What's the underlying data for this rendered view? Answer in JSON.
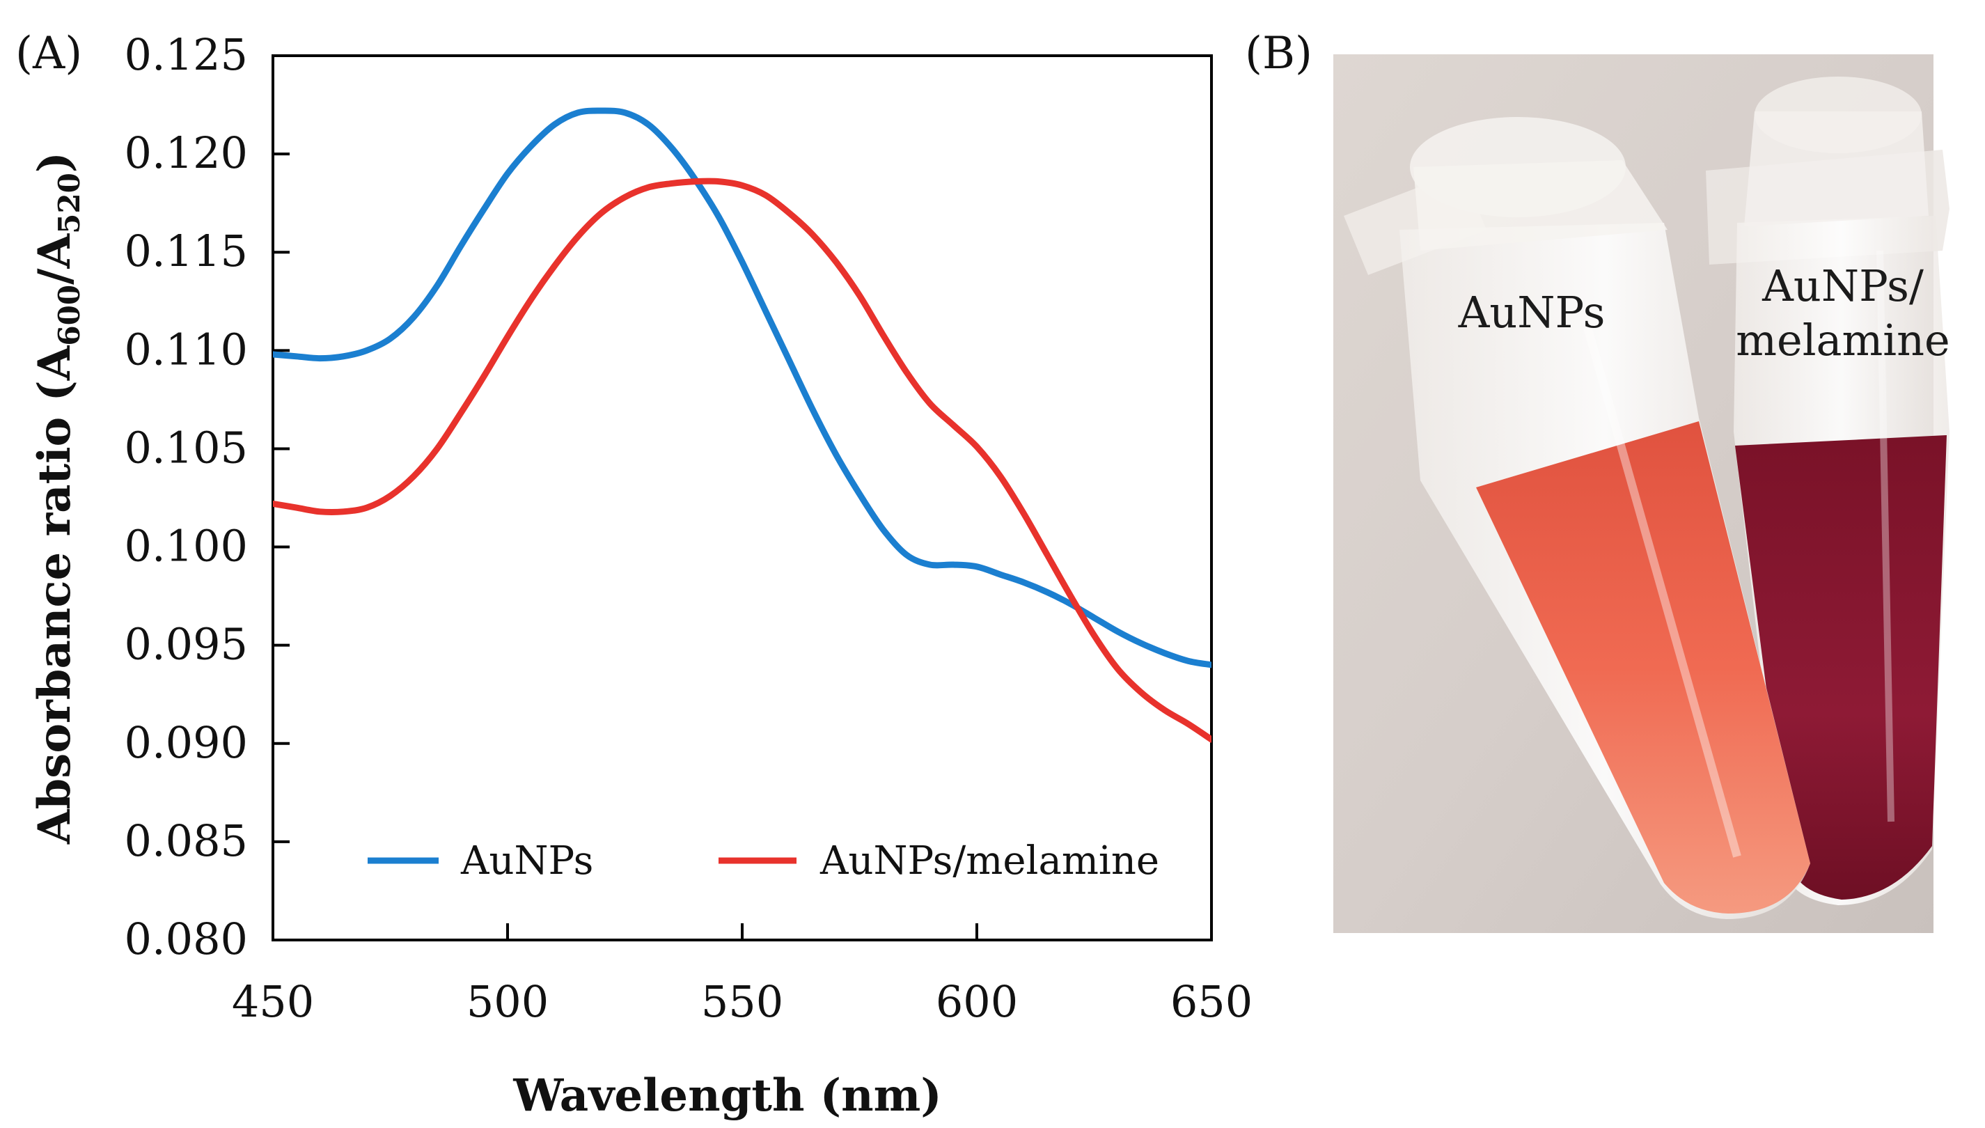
{
  "panels": {
    "a_label": "(A)",
    "b_label": "(B)"
  },
  "chart_data": {
    "type": "line",
    "title": "",
    "xlabel": "Wavelength (nm)",
    "ylabel_main": "Absorbance ratio (A",
    "ylabel_sub1": "600",
    "ylabel_mid": "/A",
    "ylabel_sub2": "520",
    "ylabel_end": ")",
    "xlim": [
      450,
      650
    ],
    "ylim": [
      0.08,
      0.125
    ],
    "x_ticks": [
      450,
      500,
      550,
      600,
      650
    ],
    "x_tick_labels": [
      "450",
      "500",
      "550",
      "600",
      "650"
    ],
    "y_ticks": [
      0.08,
      0.085,
      0.09,
      0.095,
      0.1,
      0.105,
      0.11,
      0.115,
      0.12,
      0.125
    ],
    "y_tick_labels": [
      "0.080",
      "0.085",
      "0.090",
      "0.095",
      "0.100",
      "0.105",
      "0.110",
      "0.115",
      "0.120",
      "0.125"
    ],
    "legend_position": "bottom",
    "series": [
      {
        "name": "AuNPs",
        "color": "#1b7fd0",
        "x": [
          450,
          455,
          460,
          465,
          470,
          475,
          480,
          485,
          490,
          495,
          500,
          505,
          510,
          515,
          520,
          525,
          530,
          535,
          540,
          545,
          550,
          555,
          560,
          565,
          570,
          575,
          580,
          585,
          590,
          595,
          600,
          605,
          610,
          615,
          620,
          625,
          630,
          635,
          640,
          645,
          650
        ],
        "values": [
          0.1098,
          0.1097,
          0.1096,
          0.1097,
          0.11,
          0.1106,
          0.1117,
          0.1133,
          0.1153,
          0.1172,
          0.119,
          0.1204,
          0.1215,
          0.1221,
          0.1222,
          0.1221,
          0.1215,
          0.1203,
          0.1187,
          0.1168,
          0.1145,
          0.112,
          0.1095,
          0.107,
          0.1047,
          0.1027,
          0.1009,
          0.0996,
          0.0991,
          0.0991,
          0.099,
          0.0986,
          0.0982,
          0.0977,
          0.0971,
          0.0964,
          0.0957,
          0.0951,
          0.0946,
          0.0942,
          0.094
        ]
      },
      {
        "name": "AuNPs/melamine",
        "color": "#e8322c",
        "x": [
          450,
          455,
          460,
          465,
          470,
          475,
          480,
          485,
          490,
          495,
          500,
          505,
          510,
          515,
          520,
          525,
          530,
          535,
          540,
          545,
          550,
          555,
          560,
          565,
          570,
          575,
          580,
          585,
          590,
          595,
          600,
          605,
          610,
          615,
          620,
          625,
          630,
          635,
          640,
          645,
          650
        ],
        "values": [
          0.1022,
          0.102,
          0.1018,
          0.1018,
          0.102,
          0.1026,
          0.1036,
          0.105,
          0.1068,
          0.1087,
          0.1107,
          0.1126,
          0.1143,
          0.1158,
          0.117,
          0.1178,
          0.1183,
          0.1185,
          0.1186,
          0.1186,
          0.1184,
          0.1179,
          0.117,
          0.1159,
          0.1145,
          0.1128,
          0.1108,
          0.1089,
          0.1073,
          0.1062,
          0.1051,
          0.1036,
          0.1017,
          0.0996,
          0.0975,
          0.0955,
          0.0938,
          0.0926,
          0.0917,
          0.091,
          0.0902
        ]
      }
    ]
  },
  "photo": {
    "tube1_label": "AuNPs",
    "tube2_label_line1": "AuNPs/",
    "tube2_label_line2": "melamine"
  }
}
